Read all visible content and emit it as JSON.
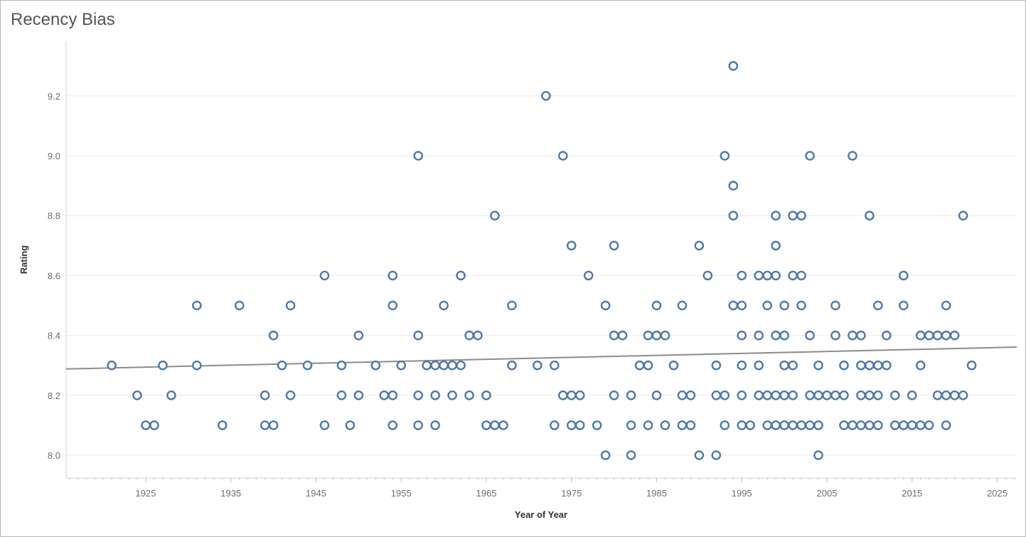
{
  "title": "Recency Bias",
  "colors": {
    "point": "#4e79a7",
    "trend": "#8c8c8c",
    "grid": "#ececec",
    "axis": "#d4d4d4"
  },
  "chart_data": {
    "type": "scatter",
    "title": "Recency Bias",
    "xlabel": "Year of Year",
    "ylabel": "Rating",
    "xlim": [
      1915,
      2027
    ],
    "ylim": [
      7.93,
      9.41
    ],
    "xticks": [
      1925,
      1935,
      1945,
      1955,
      1965,
      1975,
      1985,
      1995,
      2005,
      2015,
      2025
    ],
    "yticks": [
      "8.0",
      "8.2",
      "8.4",
      "8.6",
      "8.8",
      "9.0",
      "9.2"
    ],
    "grid": "horizontal",
    "trendline": {
      "x": [
        1915,
        2027
      ],
      "y": [
        8.288,
        8.361
      ]
    },
    "points": [
      [
        1921,
        8.3
      ],
      [
        1924,
        8.2
      ],
      [
        1925,
        8.1
      ],
      [
        1926,
        8.1
      ],
      [
        1927,
        8.3
      ],
      [
        1928,
        8.2
      ],
      [
        1931,
        8.5
      ],
      [
        1931,
        8.3
      ],
      [
        1934,
        8.1
      ],
      [
        1936,
        8.5
      ],
      [
        1939,
        8.2
      ],
      [
        1939,
        8.1
      ],
      [
        1940,
        8.4
      ],
      [
        1940,
        8.1
      ],
      [
        1941,
        8.3
      ],
      [
        1942,
        8.5
      ],
      [
        1942,
        8.2
      ],
      [
        1944,
        8.3
      ],
      [
        1946,
        8.6
      ],
      [
        1946,
        8.1
      ],
      [
        1948,
        8.3
      ],
      [
        1948,
        8.2
      ],
      [
        1949,
        8.1
      ],
      [
        1950,
        8.4
      ],
      [
        1950,
        8.2
      ],
      [
        1952,
        8.3
      ],
      [
        1953,
        8.2
      ],
      [
        1954,
        8.6
      ],
      [
        1954,
        8.5
      ],
      [
        1954,
        8.2
      ],
      [
        1954,
        8.1
      ],
      [
        1955,
        8.3
      ],
      [
        1957,
        9.0
      ],
      [
        1957,
        8.4
      ],
      [
        1957,
        8.2
      ],
      [
        1957,
        8.1
      ],
      [
        1958,
        8.3
      ],
      [
        1959,
        8.3
      ],
      [
        1959,
        8.2
      ],
      [
        1959,
        8.1
      ],
      [
        1960,
        8.5
      ],
      [
        1960,
        8.3
      ],
      [
        1961,
        8.3
      ],
      [
        1961,
        8.2
      ],
      [
        1962,
        8.6
      ],
      [
        1962,
        8.3
      ],
      [
        1963,
        8.4
      ],
      [
        1963,
        8.2
      ],
      [
        1964,
        8.4
      ],
      [
        1965,
        8.2
      ],
      [
        1965,
        8.1
      ],
      [
        1966,
        8.8
      ],
      [
        1966,
        8.1
      ],
      [
        1967,
        8.1
      ],
      [
        1968,
        8.5
      ],
      [
        1968,
        8.3
      ],
      [
        1971,
        8.3
      ],
      [
        1972,
        9.2
      ],
      [
        1973,
        8.3
      ],
      [
        1973,
        8.1
      ],
      [
        1974,
        9.0
      ],
      [
        1974,
        8.2
      ],
      [
        1975,
        8.7
      ],
      [
        1975,
        8.2
      ],
      [
        1975,
        8.1
      ],
      [
        1976,
        8.2
      ],
      [
        1976,
        8.1
      ],
      [
        1977,
        8.6
      ],
      [
        1978,
        8.1
      ],
      [
        1979,
        8.5
      ],
      [
        1979,
        8.0
      ],
      [
        1980,
        8.7
      ],
      [
        1980,
        8.4
      ],
      [
        1980,
        8.2
      ],
      [
        1981,
        8.4
      ],
      [
        1982,
        8.2
      ],
      [
        1982,
        8.1
      ],
      [
        1982,
        8.0
      ],
      [
        1983,
        8.3
      ],
      [
        1984,
        8.4
      ],
      [
        1984,
        8.3
      ],
      [
        1984,
        8.1
      ],
      [
        1985,
        8.5
      ],
      [
        1985,
        8.4
      ],
      [
        1985,
        8.2
      ],
      [
        1986,
        8.4
      ],
      [
        1986,
        8.1
      ],
      [
        1987,
        8.3
      ],
      [
        1988,
        8.5
      ],
      [
        1988,
        8.2
      ],
      [
        1988,
        8.1
      ],
      [
        1989,
        8.2
      ],
      [
        1989,
        8.1
      ],
      [
        1990,
        8.7
      ],
      [
        1990,
        8.0
      ],
      [
        1991,
        8.6
      ],
      [
        1992,
        8.3
      ],
      [
        1992,
        8.2
      ],
      [
        1992,
        8.0
      ],
      [
        1993,
        9.0
      ],
      [
        1993,
        8.2
      ],
      [
        1993,
        8.1
      ],
      [
        1994,
        9.3
      ],
      [
        1994,
        8.9
      ],
      [
        1994,
        8.8
      ],
      [
        1994,
        8.5
      ],
      [
        1995,
        8.6
      ],
      [
        1995,
        8.5
      ],
      [
        1995,
        8.4
      ],
      [
        1995,
        8.3
      ],
      [
        1995,
        8.2
      ],
      [
        1995,
        8.1
      ],
      [
        1996,
        8.1
      ],
      [
        1997,
        8.6
      ],
      [
        1997,
        8.4
      ],
      [
        1997,
        8.3
      ],
      [
        1997,
        8.2
      ],
      [
        1998,
        8.6
      ],
      [
        1998,
        8.5
      ],
      [
        1998,
        8.2
      ],
      [
        1998,
        8.1
      ],
      [
        1999,
        8.8
      ],
      [
        1999,
        8.7
      ],
      [
        1999,
        8.6
      ],
      [
        1999,
        8.4
      ],
      [
        1999,
        8.2
      ],
      [
        1999,
        8.1
      ],
      [
        2000,
        8.5
      ],
      [
        2000,
        8.4
      ],
      [
        2000,
        8.3
      ],
      [
        2000,
        8.2
      ],
      [
        2000,
        8.1
      ],
      [
        2001,
        8.8
      ],
      [
        2001,
        8.6
      ],
      [
        2001,
        8.3
      ],
      [
        2001,
        8.2
      ],
      [
        2001,
        8.1
      ],
      [
        2002,
        8.8
      ],
      [
        2002,
        8.6
      ],
      [
        2002,
        8.5
      ],
      [
        2002,
        8.1
      ],
      [
        2003,
        9.0
      ],
      [
        2003,
        8.4
      ],
      [
        2003,
        8.2
      ],
      [
        2003,
        8.1
      ],
      [
        2004,
        8.3
      ],
      [
        2004,
        8.2
      ],
      [
        2004,
        8.1
      ],
      [
        2004,
        8.0
      ],
      [
        2005,
        8.2
      ],
      [
        2006,
        8.5
      ],
      [
        2006,
        8.4
      ],
      [
        2006,
        8.2
      ],
      [
        2007,
        8.3
      ],
      [
        2007,
        8.2
      ],
      [
        2007,
        8.1
      ],
      [
        2008,
        9.0
      ],
      [
        2008,
        8.4
      ],
      [
        2008,
        8.1
      ],
      [
        2009,
        8.4
      ],
      [
        2009,
        8.3
      ],
      [
        2009,
        8.2
      ],
      [
        2009,
        8.1
      ],
      [
        2010,
        8.8
      ],
      [
        2010,
        8.3
      ],
      [
        2010,
        8.2
      ],
      [
        2010,
        8.1
      ],
      [
        2011,
        8.5
      ],
      [
        2011,
        8.3
      ],
      [
        2011,
        8.2
      ],
      [
        2011,
        8.1
      ],
      [
        2012,
        8.4
      ],
      [
        2012,
        8.3
      ],
      [
        2013,
        8.2
      ],
      [
        2013,
        8.1
      ],
      [
        2014,
        8.6
      ],
      [
        2014,
        8.5
      ],
      [
        2014,
        8.1
      ],
      [
        2015,
        8.2
      ],
      [
        2015,
        8.1
      ],
      [
        2016,
        8.4
      ],
      [
        2016,
        8.3
      ],
      [
        2016,
        8.1
      ],
      [
        2017,
        8.4
      ],
      [
        2017,
        8.1
      ],
      [
        2018,
        8.4
      ],
      [
        2018,
        8.2
      ],
      [
        2019,
        8.5
      ],
      [
        2019,
        8.4
      ],
      [
        2019,
        8.2
      ],
      [
        2019,
        8.1
      ],
      [
        2020,
        8.4
      ],
      [
        2020,
        8.2
      ],
      [
        2021,
        8.8
      ],
      [
        2021,
        8.2
      ],
      [
        2022,
        8.3
      ]
    ]
  }
}
